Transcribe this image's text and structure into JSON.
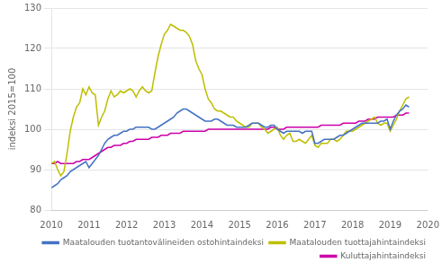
{
  "chart_data": {
    "type": "line",
    "ylabel": "indeksi 2015=100",
    "xlim": [
      2010.0,
      2020.0
    ],
    "ylim": [
      80,
      130
    ],
    "xticks": [
      2010,
      2011,
      2012,
      2013,
      2014,
      2015,
      2016,
      2017,
      2018,
      2019,
      2020
    ],
    "yticks": [
      80,
      90,
      100,
      110,
      120,
      130
    ],
    "grid": "y",
    "legend": "lower right",
    "x": [
      2010,
      2010.0833333333333,
      2010.1666666666667,
      2010.25,
      2010.3333333333333,
      2010.4166666666667,
      2010.5,
      2010.5833333333333,
      2010.6666666666667,
      2010.75,
      2010.8333333333333,
      2010.9166666666667,
      2011,
      2011.0833333333333,
      2011.1666666666667,
      2011.25,
      2011.3333333333333,
      2011.4166666666667,
      2011.5,
      2011.5833333333333,
      2011.6666666666667,
      2011.75,
      2011.8333333333333,
      2011.9166666666667,
      2012,
      2012.0833333333333,
      2012.1666666666667,
      2012.25,
      2012.3333333333333,
      2012.4166666666667,
      2012.5,
      2012.5833333333333,
      2012.6666666666667,
      2012.75,
      2012.8333333333333,
      2012.9166666666667,
      2013,
      2013.0833333333333,
      2013.1666666666667,
      2013.25,
      2013.3333333333333,
      2013.4166666666667,
      2013.5,
      2013.5833333333333,
      2013.6666666666667,
      2013.75,
      2013.8333333333333,
      2013.9166666666667,
      2014,
      2014.0833333333333,
      2014.1666666666667,
      2014.25,
      2014.3333333333333,
      2014.4166666666667,
      2014.5,
      2014.5833333333333,
      2014.6666666666667,
      2014.75,
      2014.8333333333333,
      2014.9166666666667,
      2015,
      2015.0833333333333,
      2015.1666666666667,
      2015.25,
      2015.3333333333333,
      2015.4166666666667,
      2015.5,
      2015.5833333333333,
      2015.6666666666667,
      2015.75,
      2015.8333333333333,
      2015.9166666666667,
      2016,
      2016.0833333333333,
      2016.1666666666667,
      2016.25,
      2016.3333333333333,
      2016.4166666666667,
      2016.5,
      2016.5833333333333,
      2016.6666666666667,
      2016.75,
      2016.8333333333333,
      2016.9166666666667,
      2017,
      2017.0833333333333,
      2017.1666666666667,
      2017.25,
      2017.3333333333333,
      2017.4166666666667,
      2017.5,
      2017.5833333333333,
      2017.6666666666667,
      2017.75,
      2017.8333333333333,
      2017.9166666666667,
      2018,
      2018.0833333333333,
      2018.1666666666667,
      2018.25,
      2018.3333333333333,
      2018.4166666666667,
      2018.5,
      2018.5833333333333,
      2018.6666666666667,
      2018.75,
      2018.8333333333333,
      2018.9166666666667,
      2019,
      2019.0833333333333,
      2019.1666666666667,
      2019.25,
      2019.3333333333333,
      2019.4166666666667,
      2019.5
    ],
    "series": [
      {
        "name": "Maatalouden tuotantovälineiden ostohintaindeksi",
        "color": "#4472C4",
        "values": [
          85.5,
          86.0,
          86.5,
          87.5,
          88.0,
          88.5,
          89.5,
          90.0,
          90.5,
          91.0,
          91.5,
          92.0,
          90.5,
          91.5,
          92.5,
          93.5,
          95.0,
          96.5,
          97.5,
          98.0,
          98.5,
          98.5,
          99.0,
          99.5,
          99.5,
          100.0,
          100.0,
          100.5,
          100.5,
          100.5,
          100.5,
          100.5,
          100.0,
          100.0,
          100.5,
          101.0,
          101.5,
          102.0,
          102.5,
          103.0,
          104.0,
          104.5,
          105.0,
          105.0,
          104.5,
          104.0,
          103.5,
          103.0,
          102.5,
          102.0,
          102.0,
          102.0,
          102.5,
          102.5,
          102.0,
          101.5,
          101.0,
          101.0,
          101.0,
          100.5,
          100.5,
          100.5,
          100.5,
          101.0,
          101.5,
          101.5,
          101.5,
          101.0,
          100.5,
          100.5,
          101.0,
          101.0,
          100.0,
          99.5,
          99.0,
          99.5,
          99.5,
          99.5,
          99.5,
          99.5,
          99.0,
          99.5,
          99.5,
          99.5,
          96.5,
          96.5,
          97.0,
          97.5,
          97.5,
          97.5,
          97.5,
          98.0,
          98.5,
          98.5,
          99.0,
          99.5,
          100.0,
          100.5,
          101.0,
          101.5,
          101.5,
          101.5,
          101.5,
          101.5,
          101.5,
          102.0,
          102.0,
          102.5,
          100.0,
          102.0,
          103.5,
          104.5,
          105.0,
          106.0,
          105.5
        ]
      },
      {
        "name": "Maatalouden tuottajahintaindeksi",
        "color": "#BEBE00",
        "values": [
          91.5,
          92.0,
          90.0,
          88.5,
          89.5,
          94.0,
          99.5,
          103.0,
          105.5,
          106.5,
          110.0,
          108.5,
          110.5,
          109.0,
          108.5,
          101.0,
          103.0,
          104.5,
          107.5,
          109.5,
          108.0,
          108.5,
          109.5,
          109.0,
          109.5,
          110.0,
          109.5,
          108.0,
          109.5,
          110.5,
          109.5,
          109.0,
          109.5,
          114.0,
          118.0,
          121.0,
          123.5,
          124.5,
          126.0,
          125.5,
          125.0,
          124.5,
          124.5,
          124.0,
          123.0,
          121.0,
          117.0,
          115.0,
          113.5,
          110.0,
          107.5,
          106.5,
          105.0,
          104.5,
          104.5,
          104.0,
          103.5,
          103.0,
          103.0,
          102.0,
          101.5,
          101.0,
          100.5,
          100.5,
          101.5,
          101.5,
          101.5,
          100.5,
          100.0,
          99.0,
          99.5,
          100.0,
          100.5,
          98.5,
          97.5,
          98.5,
          99.0,
          97.0,
          97.0,
          97.5,
          97.0,
          96.5,
          97.5,
          98.5,
          96.0,
          95.5,
          96.5,
          96.5,
          96.5,
          97.5,
          97.5,
          97.0,
          97.5,
          98.5,
          99.5,
          99.5,
          99.5,
          100.0,
          100.5,
          101.0,
          101.5,
          102.0,
          102.5,
          103.0,
          101.5,
          101.0,
          101.5,
          101.5,
          99.5,
          101.0,
          102.5,
          104.5,
          106.0,
          107.5,
          108.0
        ]
      },
      {
        "name": "Kuluttajahintaindeksi",
        "color": "#CC00AA",
        "values": [
          91.5,
          91.5,
          92.0,
          91.5,
          91.5,
          91.5,
          91.5,
          91.5,
          92.0,
          92.0,
          92.5,
          92.5,
          92.5,
          93.0,
          93.5,
          94.0,
          94.5,
          95.0,
          95.5,
          95.5,
          96.0,
          96.0,
          96.0,
          96.5,
          96.5,
          97.0,
          97.0,
          97.5,
          97.5,
          97.5,
          97.5,
          97.5,
          98.0,
          98.0,
          98.0,
          98.5,
          98.5,
          98.5,
          99.0,
          99.0,
          99.0,
          99.0,
          99.5,
          99.5,
          99.5,
          99.5,
          99.5,
          99.5,
          99.5,
          99.5,
          100.0,
          100.0,
          100.0,
          100.0,
          100.0,
          100.0,
          100.0,
          100.0,
          100.0,
          100.0,
          100.0,
          100.0,
          100.0,
          100.0,
          100.0,
          100.0,
          100.0,
          100.0,
          100.0,
          100.0,
          100.5,
          100.5,
          100.0,
          100.0,
          100.0,
          100.5,
          100.5,
          100.5,
          100.5,
          100.5,
          100.5,
          100.5,
          100.5,
          100.5,
          100.5,
          100.5,
          101.0,
          101.0,
          101.0,
          101.0,
          101.0,
          101.0,
          101.0,
          101.5,
          101.5,
          101.5,
          101.5,
          101.5,
          102.0,
          102.0,
          102.0,
          102.5,
          102.5,
          102.5,
          103.0,
          103.0,
          103.0,
          103.0,
          103.0,
          103.0,
          103.5,
          103.5,
          103.5,
          104.0,
          104.0
        ]
      }
    ]
  }
}
